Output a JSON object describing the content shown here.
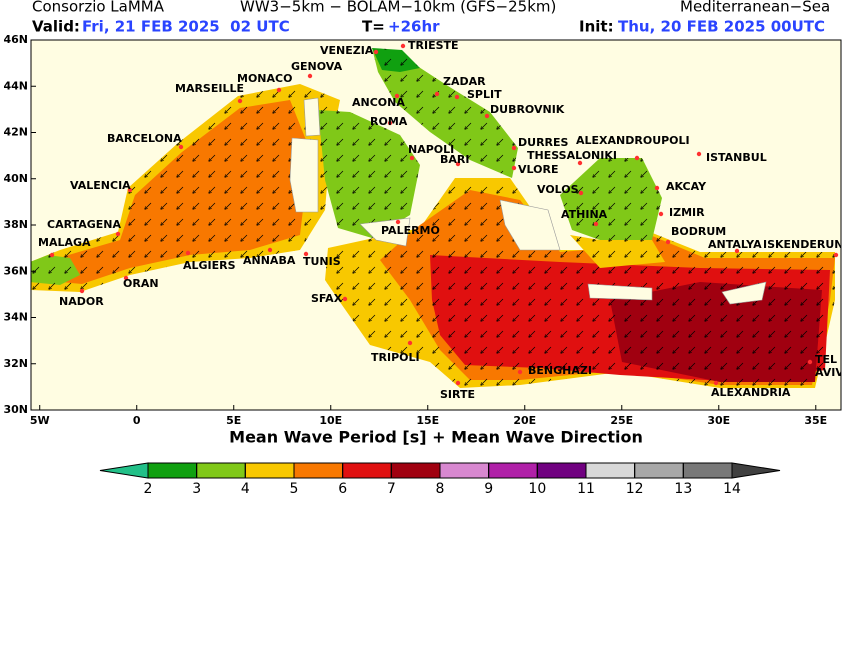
{
  "header": {
    "left": "Consorzio LaMMA",
    "center": "WW3−5km − BOLAM−10km (GFS−25km)",
    "right": "Mediterranean−Sea",
    "valid_label": "Valid:",
    "valid": "Fri, 21 FEB 2025  02 UTC",
    "lead_label": "T=",
    "lead": "+26hr",
    "init_label": "Init:",
    "init": "Thu, 20 FEB 2025 00UTC"
  },
  "map": {
    "title": "Mean Wave Period [s] + Mean Wave Direction",
    "xlim": [
      -5.45,
      36.3
    ],
    "ylim": [
      30,
      46
    ],
    "xticks": [
      {
        "value": -5,
        "label": "5W"
      },
      0,
      {
        "value": 5,
        "label": "5E"
      },
      {
        "value": 10,
        "label": "10E"
      },
      {
        "value": 15,
        "label": "15E"
      },
      {
        "value": 20,
        "label": "20E"
      },
      {
        "value": 25,
        "label": "25E"
      },
      {
        "value": 30,
        "label": "30E"
      },
      {
        "value": 35,
        "label": "35E"
      }
    ],
    "yticks": [
      {
        "value": 30,
        "label": "30N"
      },
      {
        "value": 32,
        "label": "32N"
      },
      {
        "value": 34,
        "label": "34N"
      },
      {
        "value": 36,
        "label": "36N"
      },
      {
        "value": 38,
        "label": "38N"
      },
      {
        "value": 40,
        "label": "40N"
      },
      {
        "value": 42,
        "label": "42N"
      },
      {
        "value": 44,
        "label": "44N"
      },
      {
        "value": 46,
        "label": "46N"
      }
    ],
    "cities": [
      "VENEZIA",
      "TRIESTE",
      "GENOVA",
      "MONACO",
      "MARSEILLE",
      "ZADAR",
      "SPLIT",
      "ANCONA",
      "DUBROVNIK",
      "ROMA",
      "BARCELONA",
      "DURRES",
      "ALEXANDROUPOLI",
      "NAPOLI",
      "THESSALONIKI",
      "ISTANBUL",
      "BARI",
      "VLORE",
      "VALENCIA",
      "VOLOS",
      "AKCAY",
      "ATHINA",
      "IZMIR",
      "PALERMO",
      "CARTAGENA",
      "BODRUM",
      "ANTALYA",
      "ISKENDERUN",
      "MALAGA",
      "ALGIERS",
      "ANNABA",
      "TUNIS",
      "ORAN",
      "NADOR",
      "SFAX",
      "TRIPOLI",
      "TEL",
      "AVIV",
      "BENGHAZI",
      "SIRTE",
      "ALEXANDRIA"
    ]
  },
  "colorbar": {
    "ticks": [
      2,
      3,
      4,
      5,
      6,
      7,
      8,
      9,
      10,
      11,
      12,
      13,
      14
    ],
    "under_color": "#22c088",
    "colors": [
      "#10a010",
      "#80c818",
      "#f8c800",
      "#f87800",
      "#e01010",
      "#a00010",
      "#d888d0",
      "#b020a8",
      "#700080",
      "#d8d8d8",
      "#a8a8a8",
      "#787878"
    ],
    "over_color": "#404040"
  }
}
